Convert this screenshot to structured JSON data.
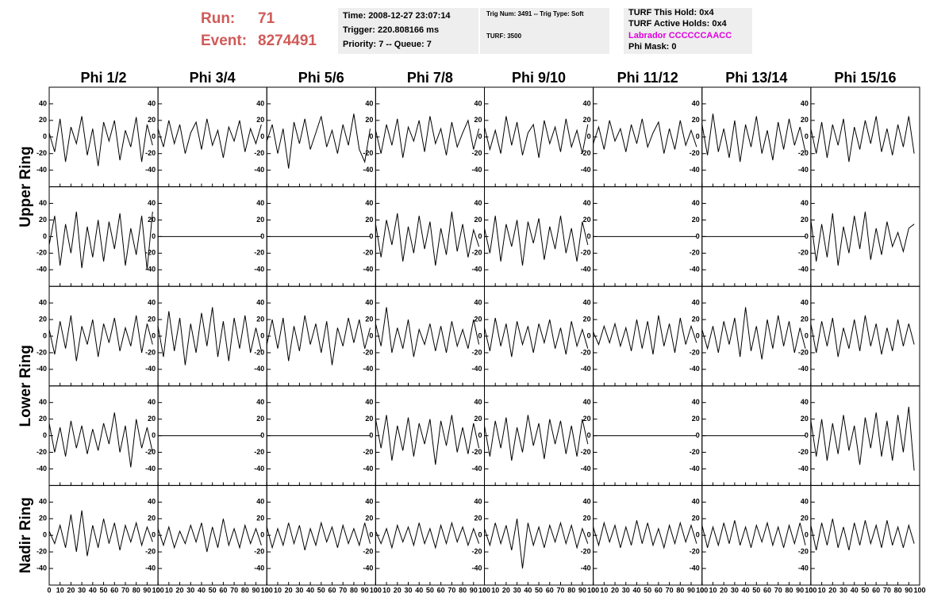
{
  "header": {
    "run_label": "Run:",
    "run": 71,
    "event_label": "Event:",
    "event": 8274491,
    "info": [
      [
        "Time: 2008-12-27 23:07:14",
        "Trigger: 220.808166 ms",
        "Priority: 7 -- Queue: 7"
      ],
      [
        "Trig Num: 3491 -- Trig Type: Soft",
        "TURF: 3500"
      ],
      [
        "TURF This Hold: 0x4",
        "TURF Active Holds: 0x4",
        "Labrador CCCCCCAACC",
        "Phi Mask: 0"
      ]
    ]
  },
  "chart_data": {
    "type": "line",
    "color": "#000000",
    "columns": [
      "Phi 1/2",
      "Phi 3/4",
      "Phi 5/6",
      "Phi 7/8",
      "Phi 9/10",
      "Phi 11/12",
      "Phi 13/14",
      "Phi 15/16"
    ],
    "rows": [
      "Upper Ring",
      "Lower Ring",
      "Nadir Ring"
    ],
    "xlim": [
      0,
      100
    ],
    "xticks": [
      0,
      10,
      20,
      30,
      40,
      50,
      60,
      70,
      80,
      90,
      100
    ],
    "ylim": [
      -60,
      60
    ],
    "yticks": [
      -40,
      -20,
      0,
      20,
      40
    ],
    "x": [
      0,
      5,
      10,
      15,
      20,
      25,
      30,
      35,
      40,
      45,
      50,
      55,
      60,
      65,
      70,
      75,
      80,
      85,
      90,
      95
    ],
    "series": [
      {
        "values": [
          5,
          -18,
          22,
          -30,
          12,
          -8,
          25,
          -22,
          10,
          -35,
          18,
          -5,
          20,
          -28,
          8,
          -12,
          24,
          -30,
          15,
          -10
        ]
      },
      {
        "values": [
          10,
          -12,
          20,
          -8,
          15,
          -20,
          5,
          18,
          -15,
          22,
          -10,
          8,
          -25,
          12,
          -5,
          20,
          -18,
          10,
          -8,
          15
        ]
      },
      {
        "values": [
          -5,
          15,
          -20,
          10,
          -38,
          18,
          -8,
          22,
          -15,
          5,
          25,
          -12,
          8,
          -20,
          15,
          -10,
          28,
          -15,
          -30,
          10
        ]
      },
      {
        "values": [
          8,
          -20,
          15,
          -10,
          22,
          -25,
          12,
          -5,
          20,
          -18,
          25,
          -8,
          10,
          -22,
          18,
          -12,
          5,
          20,
          -15,
          10
        ]
      },
      {
        "values": [
          12,
          -15,
          8,
          -20,
          25,
          -10,
          18,
          -22,
          5,
          15,
          -25,
          20,
          -8,
          12,
          -18,
          22,
          -12,
          8,
          -20,
          15
        ]
      },
      {
        "values": [
          -8,
          12,
          -15,
          20,
          -5,
          10,
          -18,
          15,
          -8,
          22,
          -12,
          5,
          18,
          -20,
          10,
          -15,
          20,
          -10,
          8,
          -12
        ]
      },
      {
        "values": [
          15,
          -22,
          28,
          -18,
          10,
          -25,
          20,
          -30,
          15,
          -12,
          25,
          -20,
          8,
          -28,
          18,
          -15,
          22,
          -10,
          12,
          -18
        ]
      },
      {
        "values": [
          10,
          -20,
          18,
          -25,
          15,
          -10,
          22,
          -30,
          12,
          -15,
          20,
          -8,
          25,
          -18,
          10,
          -22,
          15,
          -12,
          25,
          -20
        ]
      },
      {
        "values": [
          -10,
          25,
          -35,
          15,
          -20,
          30,
          -38,
          12,
          -25,
          20,
          -30,
          18,
          -15,
          28,
          -35,
          10,
          -22,
          25,
          -40,
          30
        ]
      },
      {
        "values": [
          0,
          0,
          0,
          0,
          0,
          0,
          0,
          0,
          0,
          0,
          0,
          0,
          0,
          0,
          0,
          0,
          0,
          0,
          0,
          0
        ]
      },
      {
        "values": [
          0,
          0,
          0,
          0,
          0,
          0,
          0,
          0,
          0,
          0,
          0,
          0,
          0,
          0,
          0,
          0,
          0,
          0,
          0,
          0
        ]
      },
      {
        "values": [
          15,
          -25,
          20,
          -10,
          28,
          -30,
          12,
          -20,
          25,
          -15,
          18,
          -35,
          10,
          -22,
          30,
          -18,
          15,
          -25,
          8,
          -12
        ]
      },
      {
        "values": [
          10,
          -20,
          25,
          -30,
          15,
          -12,
          20,
          -35,
          18,
          -8,
          22,
          -28,
          12,
          -15,
          25,
          -20,
          10,
          -30,
          18,
          -10
        ]
      },
      {
        "values": [
          0,
          0,
          0,
          0,
          0,
          0,
          0,
          0,
          0,
          0,
          0,
          0,
          0,
          0,
          0,
          0,
          0,
          0,
          0,
          0
        ]
      },
      {
        "values": [
          0,
          0,
          0,
          0,
          0,
          0,
          0,
          0,
          0,
          0,
          0,
          0,
          0,
          0,
          0,
          0,
          0,
          0,
          0,
          0
        ]
      },
      {
        "values": [
          20,
          -30,
          15,
          -25,
          28,
          -35,
          12,
          -20,
          25,
          -15,
          30,
          -28,
          10,
          -22,
          18,
          -12,
          5,
          -18,
          10,
          15
        ]
      },
      {
        "values": [
          8,
          -22,
          18,
          -15,
          25,
          -30,
          12,
          -10,
          20,
          -25,
          15,
          -8,
          22,
          -18,
          10,
          -12,
          25,
          -20,
          15,
          -10
        ]
      },
      {
        "values": [
          12,
          -25,
          30,
          -18,
          22,
          -35,
          15,
          -20,
          28,
          -12,
          35,
          -25,
          18,
          -30,
          22,
          -15,
          25,
          -20,
          10,
          -18
        ]
      },
      {
        "values": [
          -10,
          20,
          -15,
          22,
          -30,
          12,
          -18,
          25,
          -10,
          15,
          -20,
          18,
          -35,
          10,
          -12,
          22,
          -8,
          20,
          -15,
          10
        ]
      },
      {
        "values": [
          15,
          -12,
          35,
          -20,
          10,
          -15,
          20,
          -25,
          8,
          -10,
          15,
          -18,
          12,
          -20,
          18,
          -12,
          8,
          -15,
          20,
          -10
        ]
      },
      {
        "values": [
          10,
          -18,
          22,
          -12,
          15,
          -25,
          18,
          -10,
          12,
          -20,
          15,
          -8,
          20,
          -15,
          10,
          -22,
          18,
          -12,
          8,
          -15
        ]
      },
      {
        "values": [
          5,
          -10,
          12,
          -8,
          15,
          -12,
          10,
          -18,
          20,
          -15,
          18,
          -22,
          25,
          -12,
          15,
          -20,
          22,
          -10,
          12,
          -8
        ]
      },
      {
        "values": [
          8,
          -15,
          12,
          -20,
          18,
          -10,
          22,
          -25,
          35,
          -18,
          12,
          -28,
          20,
          -15,
          25,
          -12,
          18,
          -20,
          10,
          -15
        ]
      },
      {
        "values": [
          15,
          -20,
          18,
          -12,
          22,
          -25,
          10,
          -15,
          20,
          -18,
          25,
          -12,
          15,
          -22,
          10,
          -18,
          20,
          -12,
          15,
          -10
        ]
      },
      {
        "values": [
          15,
          -20,
          10,
          -25,
          18,
          -15,
          12,
          -22,
          8,
          -18,
          15,
          -10,
          28,
          -20,
          12,
          -38,
          20,
          -15,
          10,
          -20
        ]
      },
      {
        "values": [
          0,
          0,
          0,
          0,
          0,
          0,
          0,
          0,
          0,
          0,
          0,
          0,
          0,
          0,
          0,
          0,
          0,
          0,
          0,
          0
        ]
      },
      {
        "values": [
          0,
          0,
          0,
          0,
          0,
          0,
          0,
          0,
          0,
          0,
          0,
          0,
          0,
          0,
          0,
          0,
          0,
          0,
          0,
          0
        ]
      },
      {
        "values": [
          20,
          -15,
          25,
          -30,
          12,
          -18,
          22,
          -25,
          15,
          -10,
          20,
          -35,
          18,
          -12,
          25,
          -20,
          10,
          -22,
          15,
          -15
        ]
      },
      {
        "values": [
          12,
          -25,
          18,
          -15,
          22,
          -30,
          10,
          -20,
          25,
          -12,
          15,
          -28,
          20,
          -10,
          18,
          -22,
          12,
          -25,
          20,
          -10
        ]
      },
      {
        "values": [
          0,
          0,
          0,
          0,
          0,
          0,
          0,
          0,
          0,
          0,
          0,
          0,
          0,
          0,
          0,
          0,
          0,
          0,
          0,
          0
        ]
      },
      {
        "values": [
          0,
          0,
          0,
          0,
          0,
          0,
          0,
          0,
          0,
          0,
          0,
          0,
          0,
          0,
          0,
          0,
          0,
          0,
          0,
          0
        ]
      },
      {
        "values": [
          18,
          -25,
          20,
          -30,
          15,
          -22,
          25,
          -18,
          12,
          -35,
          22,
          -15,
          28,
          -25,
          18,
          -30,
          25,
          -20,
          35,
          -42
        ]
      },
      {
        "values": [
          5,
          -10,
          12,
          -15,
          25,
          -20,
          30,
          -25,
          12,
          -15,
          20,
          -10,
          15,
          -18,
          12,
          -8,
          15,
          -12,
          10,
          -8
        ]
      },
      {
        "values": [
          8,
          -12,
          10,
          -15,
          5,
          -10,
          12,
          -8,
          15,
          -20,
          10,
          -15,
          20,
          -12,
          8,
          -15,
          12,
          -10,
          8,
          -12
        ]
      },
      {
        "values": [
          10,
          -15,
          8,
          -12,
          15,
          -10,
          12,
          -18,
          8,
          -12,
          15,
          -8,
          10,
          -15,
          12,
          -10,
          8,
          -12,
          15,
          -10
        ]
      },
      {
        "values": [
          5,
          -10,
          8,
          -15,
          12,
          -8,
          10,
          -12,
          15,
          -10,
          8,
          -15,
          12,
          -10,
          15,
          -8,
          10,
          -12,
          8,
          -10
        ]
      },
      {
        "values": [
          8,
          -12,
          15,
          -10,
          12,
          -18,
          20,
          -40,
          15,
          -12,
          10,
          -15,
          12,
          -8,
          15,
          -10,
          12,
          -15,
          8,
          -10
        ]
      },
      {
        "values": [
          10,
          -12,
          15,
          -8,
          12,
          -15,
          10,
          -12,
          18,
          -10,
          15,
          -12,
          8,
          -15,
          12,
          -10,
          15,
          -8,
          12,
          -10
        ]
      },
      {
        "values": [
          12,
          -15,
          10,
          -12,
          15,
          -10,
          18,
          -12,
          10,
          -15,
          12,
          -8,
          15,
          -12,
          10,
          -15,
          12,
          -10,
          15,
          -12
        ]
      },
      {
        "values": [
          12,
          -18,
          15,
          -12,
          20,
          -15,
          10,
          -18,
          15,
          -12,
          18,
          -10,
          12,
          -15,
          18,
          -12,
          10,
          -15,
          12,
          -10
        ]
      }
    ]
  }
}
